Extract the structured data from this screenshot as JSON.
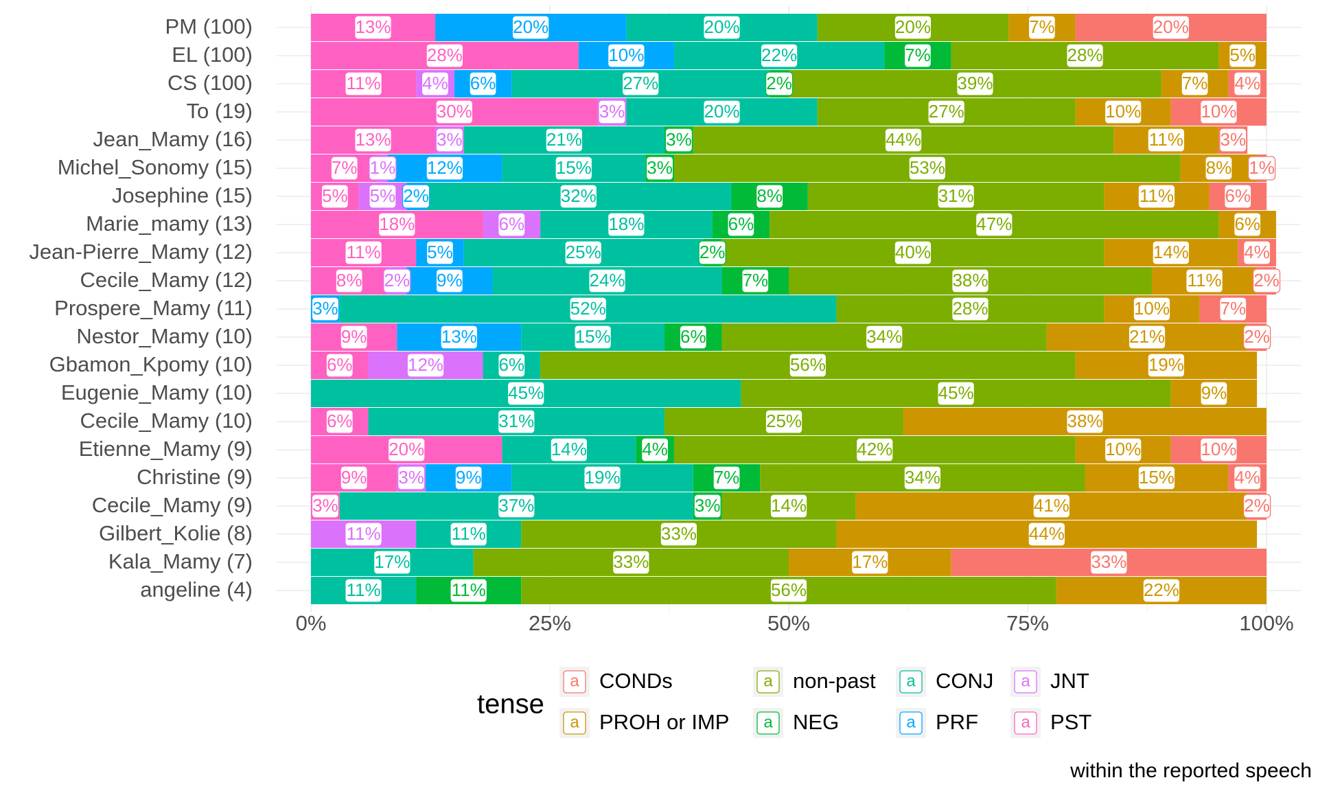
{
  "chart_data": {
    "type": "bar",
    "orientation": "horizontal",
    "stacked": "percent",
    "categories": [
      "PM (100)",
      "EL (100)",
      "CS (100)",
      "To (19)",
      "Jean_Mamy (16)",
      "Michel_Sonomy (15)",
      "Josephine (15)",
      "Marie_mamy (13)",
      "Jean-Pierre_Mamy (12)",
      "Cecile_Mamy (12)",
      "Prospere_Mamy (11)",
      "Nestor_Mamy (10)",
      "Gbamon_Kpomy (10)",
      "Eugenie_Mamy (10)",
      "Cecile_Mamy (10)",
      "Etienne_Mamy (9)",
      "Christine (9)",
      "Cecile_Mamy (9)",
      "Gilbert_Kolie (8)",
      "Kala_Mamy (7)",
      "angeline (4)"
    ],
    "series": [
      {
        "name": "PST",
        "color": "#FF61C3",
        "values": [
          13,
          28,
          11,
          30,
          13,
          7,
          5,
          18,
          11,
          8,
          0,
          9,
          6,
          0,
          6,
          20,
          9,
          3,
          0,
          0,
          0
        ]
      },
      {
        "name": "JNT",
        "color": "#DB72FB",
        "values": [
          0,
          0,
          4,
          3,
          3,
          1,
          5,
          6,
          0,
          2,
          0,
          0,
          12,
          0,
          0,
          0,
          3,
          0,
          11,
          0,
          0
        ]
      },
      {
        "name": "PRF",
        "color": "#00A9FF",
        "values": [
          20,
          10,
          6,
          0,
          0,
          12,
          2,
          0,
          5,
          9,
          3,
          13,
          0,
          0,
          0,
          0,
          9,
          0,
          0,
          0,
          0
        ]
      },
      {
        "name": "CONJ",
        "color": "#00C19F",
        "values": [
          20,
          22,
          27,
          20,
          21,
          15,
          32,
          18,
          25,
          24,
          52,
          15,
          6,
          45,
          31,
          14,
          19,
          37,
          11,
          17,
          11
        ]
      },
      {
        "name": "NEG",
        "color": "#00BA38",
        "values": [
          0,
          7,
          2,
          0,
          3,
          3,
          8,
          6,
          2,
          7,
          0,
          6,
          0,
          0,
          0,
          4,
          7,
          3,
          0,
          0,
          11
        ]
      },
      {
        "name": "non-past",
        "color": "#7CAE00",
        "values": [
          20,
          28,
          39,
          27,
          44,
          53,
          31,
          47,
          40,
          38,
          28,
          34,
          56,
          45,
          25,
          42,
          34,
          14,
          33,
          33,
          56
        ]
      },
      {
        "name": "PROH or IMP",
        "color": "#CD9600",
        "values": [
          7,
          5,
          7,
          10,
          11,
          8,
          11,
          6,
          14,
          11,
          10,
          21,
          19,
          9,
          38,
          10,
          15,
          41,
          44,
          17,
          22
        ]
      },
      {
        "name": "CONDs",
        "color": "#F8766D",
        "values": [
          20,
          0,
          4,
          10,
          3,
          1,
          6,
          0,
          4,
          2,
          7,
          2,
          0,
          0,
          0,
          10,
          4,
          2,
          0,
          33,
          0
        ]
      }
    ],
    "xlim": [
      0,
      100
    ],
    "x_ticks": [
      "0%",
      "25%",
      "50%",
      "75%",
      "100%"
    ],
    "xlabel": "",
    "ylabel": "",
    "legend": {
      "title": "tense",
      "placement": "bottom",
      "entries": [
        {
          "label": "CONDs",
          "color": "#F8766D"
        },
        {
          "label": "non-past",
          "color": "#7CAE00"
        },
        {
          "label": "CONJ",
          "color": "#00C19F"
        },
        {
          "label": "JNT",
          "color": "#DB72FB"
        },
        {
          "label": "PROH or IMP",
          "color": "#CD9600"
        },
        {
          "label": "NEG",
          "color": "#00BA38"
        },
        {
          "label": "PRF",
          "color": "#00A9FF"
        },
        {
          "label": "PST",
          "color": "#FF61C3"
        }
      ],
      "key_glyph": "a"
    },
    "caption": "within the reported speech",
    "grid": true
  }
}
